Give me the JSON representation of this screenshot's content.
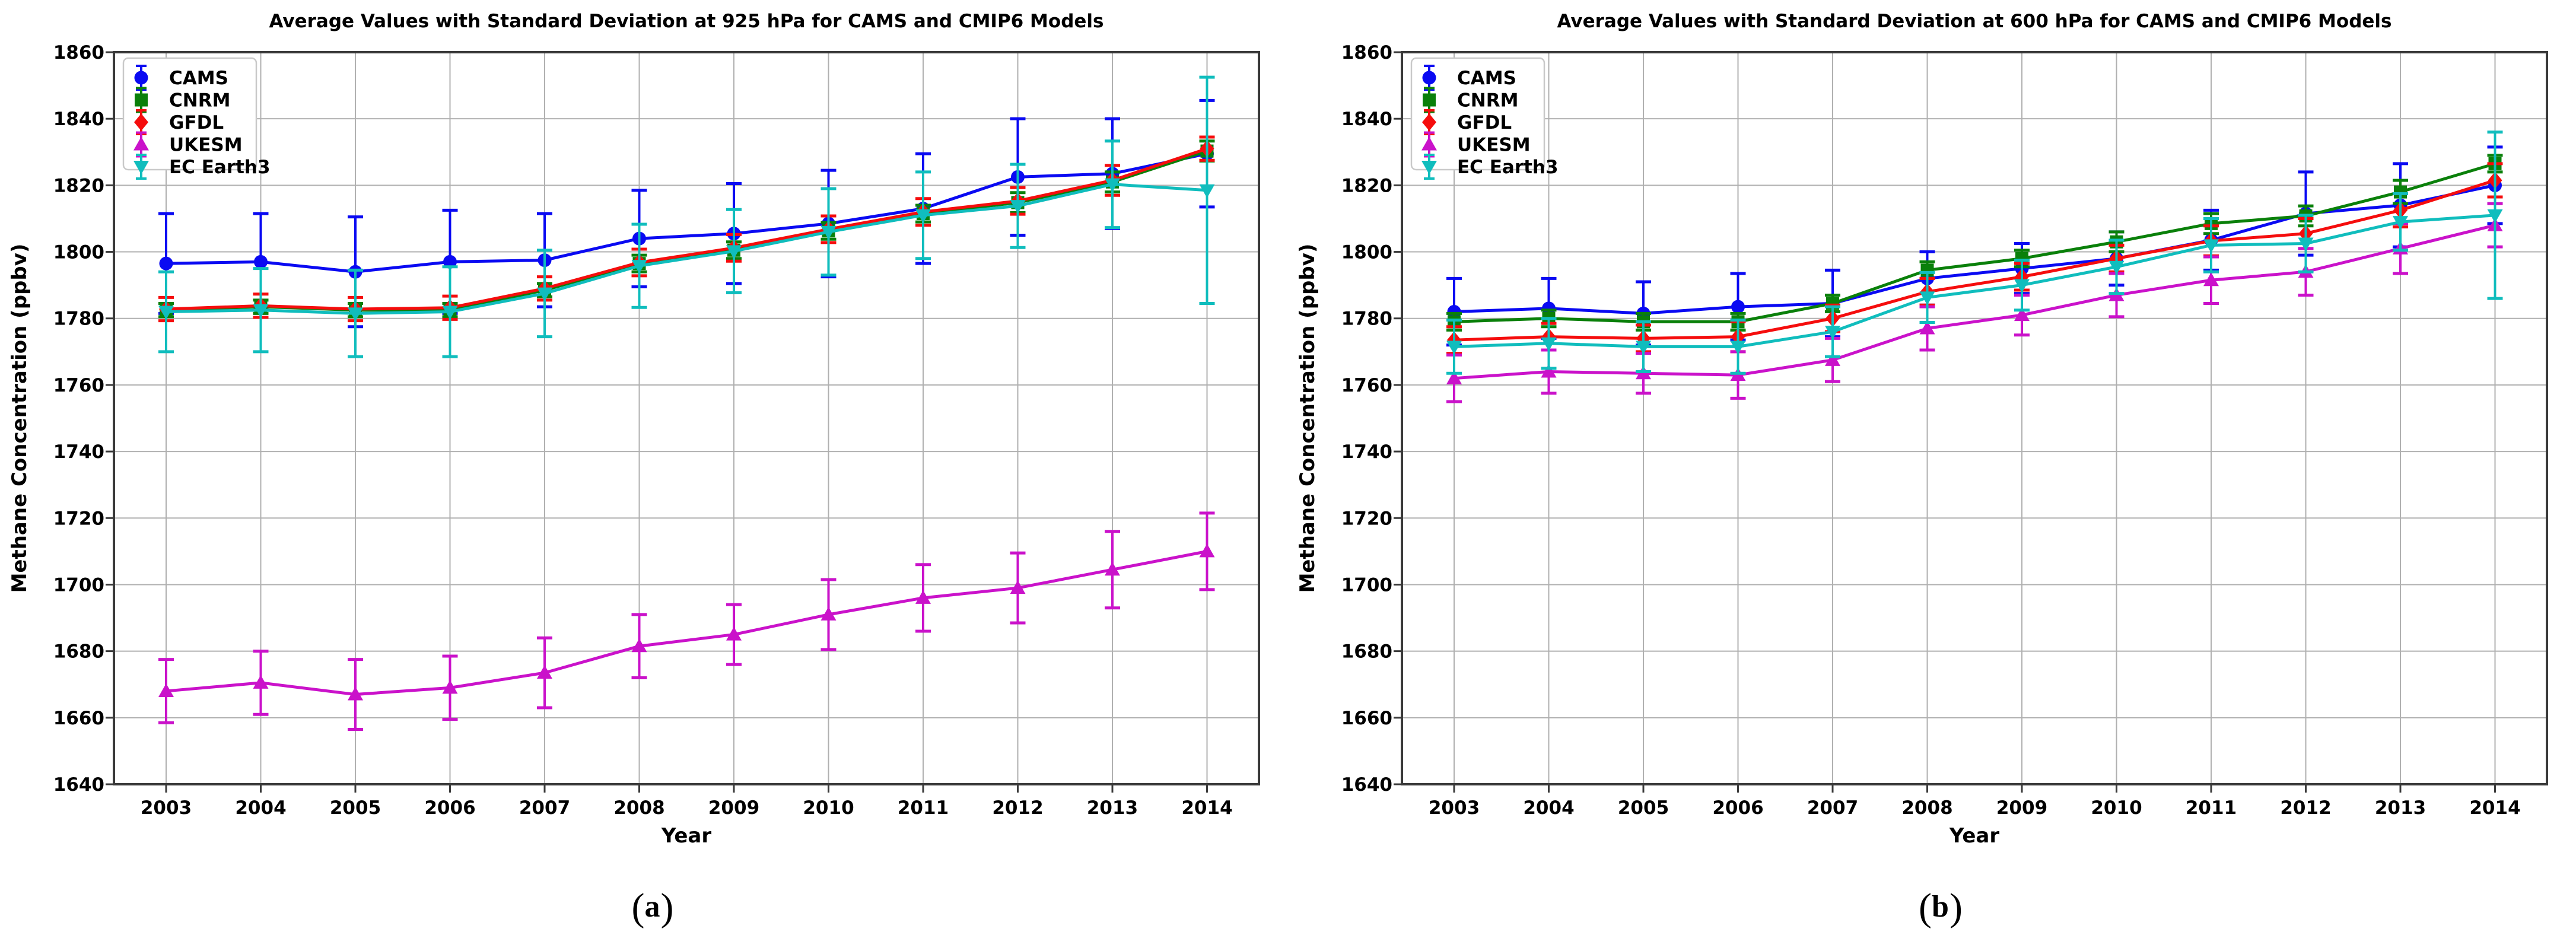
{
  "figure": {
    "background": "#ffffff"
  },
  "captions": {
    "a": "a",
    "b": "b"
  },
  "styles": {
    "grid_color": "#b0b0b0",
    "spine_color": "#3a3a3a",
    "tick_color": "#3a3a3a",
    "text_color": "#000000",
    "legend_border": "#c9c9c9",
    "legend_bg": "#ffffff"
  },
  "chart_data": [
    {
      "id": "a",
      "type": "line",
      "title": "Average Values with Standard Deviation at 925 hPa for CAMS and CMIP6 Models",
      "xlabel": "Year",
      "ylabel": "Methane Concentration (ppbv)",
      "x": [
        2003,
        2004,
        2005,
        2006,
        2007,
        2008,
        2009,
        2010,
        2011,
        2012,
        2013,
        2014
      ],
      "ylim": [
        1640,
        1860
      ],
      "yticks": [
        1640,
        1660,
        1680,
        1700,
        1720,
        1740,
        1760,
        1780,
        1800,
        1820,
        1840,
        1860
      ],
      "grid": true,
      "legend_position": "upper left",
      "series": [
        {
          "name": "CAMS",
          "color": "#0a0af2",
          "marker": "circle",
          "values": [
            1796.5,
            1797,
            1794,
            1797,
            1797.5,
            1804,
            1805.5,
            1808.5,
            1813,
            1822.5,
            1823.5,
            1829.5
          ],
          "errors": [
            15,
            14.5,
            16.5,
            15.5,
            14,
            14.5,
            15,
            16,
            16.5,
            17.5,
            16.5,
            16
          ]
        },
        {
          "name": "CNRM",
          "color": "#0a800a",
          "marker": "square",
          "values": [
            1782.5,
            1783.5,
            1782.5,
            1782.5,
            1788.5,
            1796.5,
            1800.5,
            1806.3,
            1811.5,
            1814.8,
            1821,
            1830.3
          ],
          "errors": [
            2,
            2,
            2,
            2,
            2,
            2.5,
            2.5,
            2.5,
            2.5,
            3,
            3,
            3
          ]
        },
        {
          "name": "GFDL",
          "color": "#f50d0d",
          "marker": "diamond",
          "values": [
            1782.8,
            1783.8,
            1782.8,
            1783.2,
            1789,
            1796.8,
            1801.2,
            1806.8,
            1812,
            1815.3,
            1821.5,
            1831
          ],
          "errors": [
            3.5,
            3.5,
            3.5,
            3.5,
            3.5,
            4,
            4,
            4,
            4,
            4,
            4.5,
            3.5
          ]
        },
        {
          "name": "UKESM",
          "color": "#ca12ca",
          "marker": "triangle-up",
          "values": [
            1668,
            1670.5,
            1667,
            1669,
            1673.5,
            1681.5,
            1685,
            1691,
            1696,
            1699,
            1704.5,
            1710
          ],
          "errors": [
            9.5,
            9.5,
            10.5,
            9.5,
            10.5,
            9.5,
            9,
            10.5,
            10,
            10.5,
            11.5,
            11.5
          ]
        },
        {
          "name": "EC Earth3",
          "color": "#10bdbd",
          "marker": "triangle-down",
          "values": [
            1782,
            1782.5,
            1781.5,
            1782,
            1787.5,
            1795.8,
            1800.2,
            1806,
            1811,
            1813.8,
            1820.3,
            1818.5
          ],
          "errors": [
            12,
            12.5,
            13,
            13.5,
            13,
            12.5,
            12.5,
            13,
            13,
            12.5,
            13,
            34
          ]
        }
      ]
    },
    {
      "id": "b",
      "type": "line",
      "title": "Average Values with Standard Deviation at 600 hPa for CAMS and CMIP6 Models",
      "xlabel": "Year",
      "ylabel": "Methane Concentration (ppbv)",
      "x": [
        2003,
        2004,
        2005,
        2006,
        2007,
        2008,
        2009,
        2010,
        2011,
        2012,
        2013,
        2014
      ],
      "ylim": [
        1640,
        1860
      ],
      "yticks": [
        1640,
        1660,
        1680,
        1700,
        1720,
        1740,
        1760,
        1780,
        1800,
        1820,
        1840,
        1860
      ],
      "grid": true,
      "legend_position": "upper left",
      "series": [
        {
          "name": "CAMS",
          "color": "#0a0af2",
          "marker": "circle",
          "values": [
            1782,
            1783,
            1781.5,
            1783.5,
            1784.5,
            1792,
            1795,
            1798,
            1803.5,
            1811.5,
            1814,
            1820
          ],
          "errors": [
            10,
            9,
            9.5,
            10,
            10,
            8,
            7.5,
            8,
            9,
            12.5,
            12.5,
            11.5
          ]
        },
        {
          "name": "CNRM",
          "color": "#0a800a",
          "marker": "square",
          "values": [
            1779,
            1780,
            1779,
            1779,
            1784.5,
            1794.5,
            1798,
            1803,
            1808.5,
            1810.8,
            1818,
            1826.5
          ],
          "errors": [
            2.5,
            2.5,
            2.5,
            2.5,
            2.5,
            2.5,
            2.5,
            3,
            3,
            3,
            3.5,
            2.5
          ]
        },
        {
          "name": "GFDL",
          "color": "#f50d0d",
          "marker": "diamond",
          "values": [
            1773.5,
            1774.5,
            1774,
            1774.5,
            1780,
            1788,
            1792.5,
            1798,
            1803.3,
            1805.5,
            1812.5,
            1821.5
          ],
          "errors": [
            4,
            4,
            4,
            4.5,
            4,
            4,
            4,
            4,
            4.5,
            4.5,
            5,
            5
          ]
        },
        {
          "name": "UKESM",
          "color": "#ca12ca",
          "marker": "triangle-up",
          "values": [
            1762,
            1764,
            1763.5,
            1763,
            1767.5,
            1777,
            1781,
            1787,
            1791.5,
            1794,
            1801,
            1808
          ],
          "errors": [
            7,
            6.5,
            6,
            7,
            6.5,
            6.5,
            6,
            6.5,
            7,
            7,
            7.5,
            6.5
          ]
        },
        {
          "name": "EC Earth3",
          "color": "#10bdbd",
          "marker": "triangle-down",
          "values": [
            1771.5,
            1772.5,
            1771.5,
            1771.5,
            1776,
            1786.3,
            1790,
            1795.5,
            1802,
            1802.5,
            1809,
            1811
          ],
          "errors": [
            8,
            7.5,
            7.5,
            8,
            7.5,
            7.5,
            7.5,
            8,
            8,
            8.5,
            8.5,
            25
          ]
        }
      ]
    }
  ]
}
